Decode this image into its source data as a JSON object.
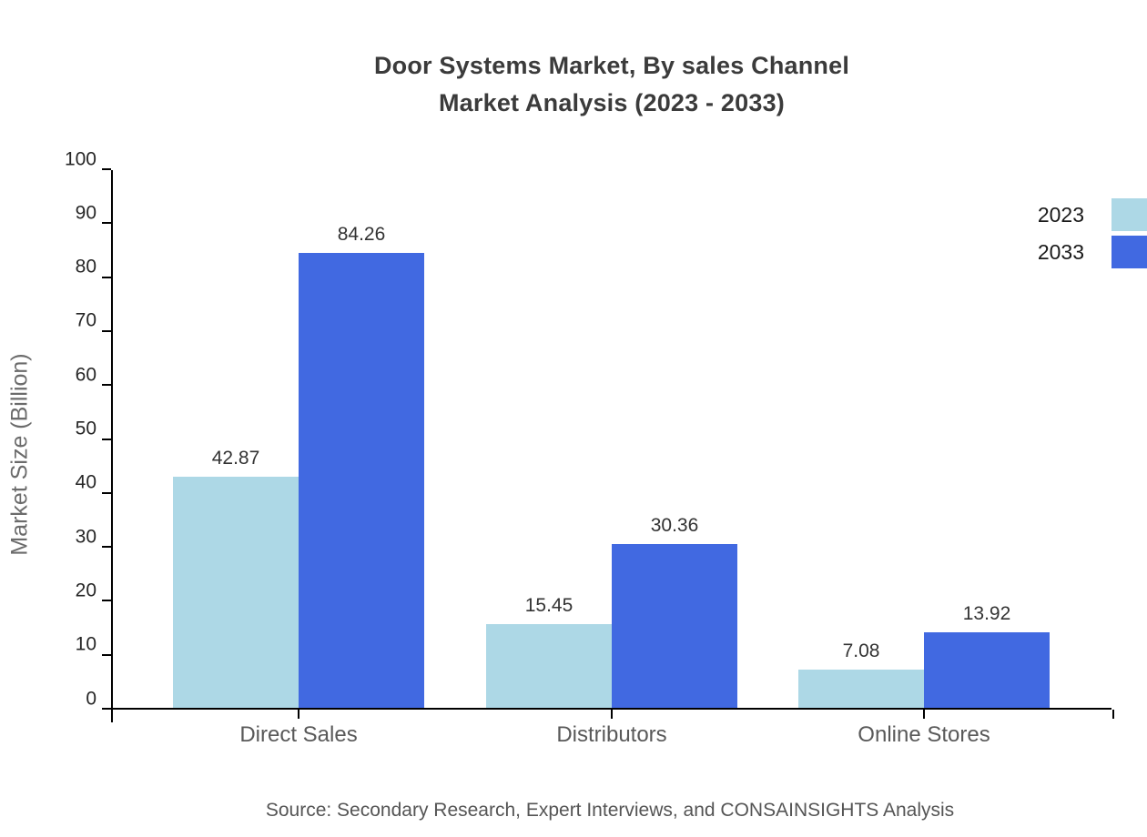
{
  "title": {
    "line1": "Door Systems Market, By sales Channel",
    "line2": "Market Analysis (2023 - 2033)"
  },
  "source": "Source: Secondary Research, Expert Interviews, and CONSAINSIGHTS Analysis",
  "chart_data": {
    "type": "bar",
    "title": "Door Systems Market, By sales Channel Market Analysis (2023 - 2033)",
    "categories": [
      "Direct Sales",
      "Distributors",
      "Online Stores"
    ],
    "series": [
      {
        "name": "2023",
        "color": "#ADD8E6",
        "values": [
          42.87,
          15.45,
          7.08
        ]
      },
      {
        "name": "2033",
        "color": "#4169E1",
        "values": [
          84.26,
          30.36,
          13.92
        ]
      }
    ],
    "xlabel": "",
    "ylabel": "Market Size (Billion)",
    "ylim": [
      0,
      100
    ],
    "ytick_step": 10,
    "grid": false,
    "legend_position": "top-right",
    "value_labels": true,
    "value_label_decimals": 2
  }
}
